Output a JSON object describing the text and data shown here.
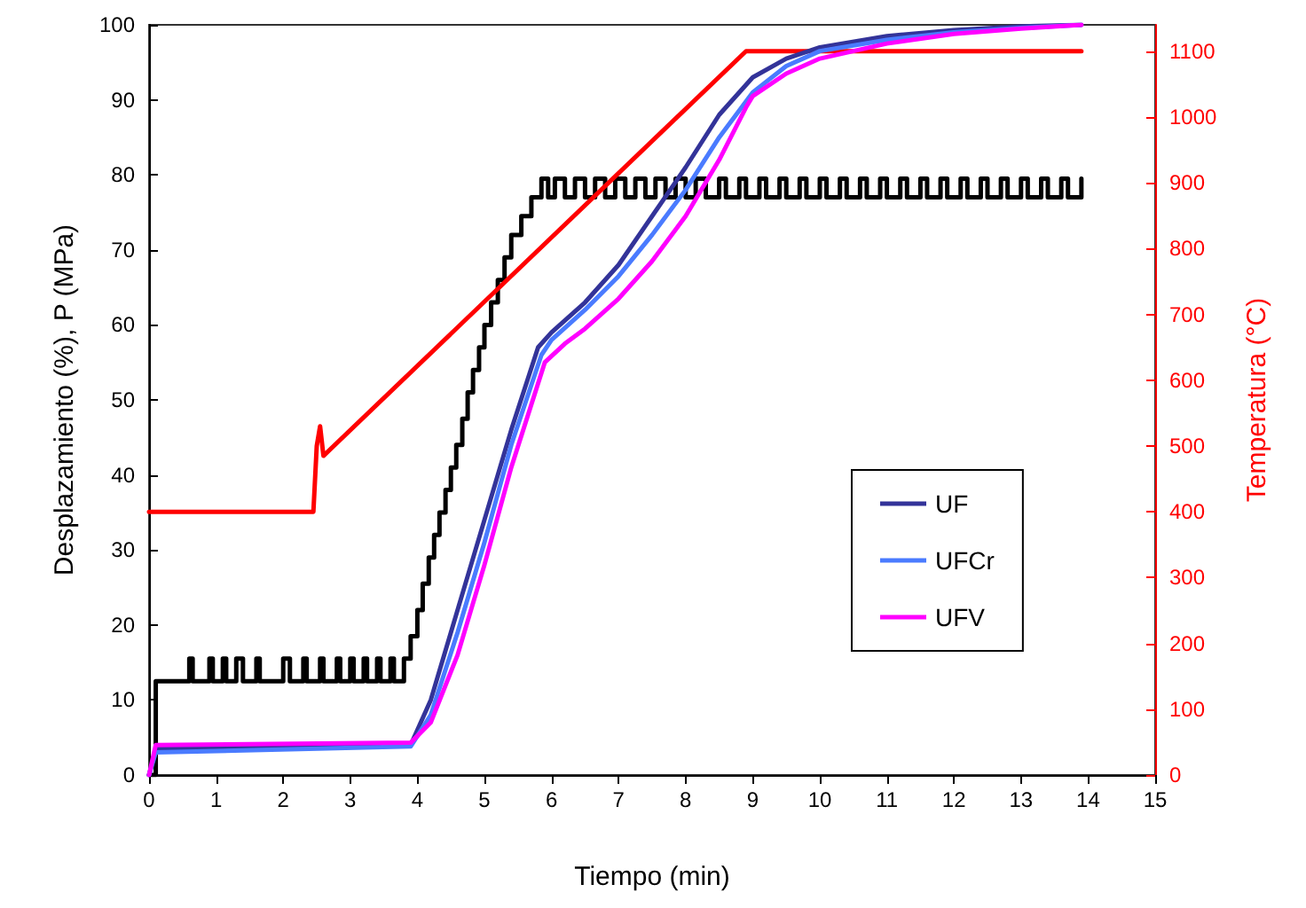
{
  "chart_data": {
    "type": "line",
    "xlabel": "Tiempo (min)",
    "ylabel": "Desplazamiento (%), P (MPa)",
    "y2label": "Temperatura (°C)",
    "xlim": [
      0,
      15
    ],
    "xticks": [
      0,
      1,
      2,
      3,
      4,
      5,
      6,
      7,
      8,
      9,
      10,
      11,
      12,
      13,
      14,
      15
    ],
    "ylim": [
      0,
      100
    ],
    "yticks": [
      0,
      10,
      20,
      30,
      40,
      50,
      60,
      70,
      80,
      90,
      100
    ],
    "y2lim": [
      0,
      1140
    ],
    "y2ticks": [
      0,
      100,
      200,
      300,
      400,
      500,
      600,
      700,
      800,
      900,
      1000,
      1100
    ],
    "grid": false,
    "legend": "right",
    "marker": "none",
    "line_style": "solid",
    "series": [
      {
        "type": "step",
        "color": "#000000",
        "x": [
          0,
          0.1,
          0.6,
          0.65,
          0.9,
          0.95,
          1.1,
          1.15,
          1.3,
          1.4,
          1.6,
          1.65,
          2.0,
          2.1,
          2.3,
          2.35,
          2.55,
          2.6,
          2.8,
          2.85,
          3.0,
          3.05,
          3.2,
          3.25,
          3.4,
          3.45,
          3.6,
          3.65,
          3.8,
          3.9,
          4.0,
          4.08,
          4.17,
          4.25,
          4.33,
          4.42,
          4.5,
          4.58,
          4.67,
          4.75,
          4.83,
          4.92,
          5.0,
          5.1,
          5.2,
          5.3,
          5.4,
          5.55,
          5.7,
          5.85,
          5.95,
          6.05,
          6.2,
          6.35,
          6.5,
          6.65,
          6.8,
          6.95,
          7.1,
          7.25,
          7.4,
          7.55,
          7.7,
          7.85,
          8.0,
          8.15,
          8.3,
          8.5,
          8.6,
          8.8,
          8.9,
          9.1,
          9.2,
          9.4,
          9.5,
          9.7,
          9.8,
          10.0,
          10.1,
          10.3,
          10.4,
          10.6,
          10.7,
          10.9,
          11.0,
          11.2,
          11.3,
          11.5,
          11.6,
          11.8,
          11.9,
          12.1,
          12.2,
          12.4,
          12.5,
          12.7,
          12.8,
          13.0,
          13.1,
          13.3,
          13.4,
          13.6,
          13.7,
          13.9
        ],
        "values": [
          0,
          12.5,
          15.5,
          12.5,
          15.5,
          12.5,
          15.5,
          12.5,
          15.5,
          12.5,
          15.5,
          12.5,
          15.5,
          12.5,
          15.5,
          12.5,
          15.5,
          12.5,
          15.5,
          12.5,
          15.5,
          12.5,
          15.5,
          12.5,
          15.5,
          12.5,
          15.5,
          12.5,
          15.5,
          18.5,
          22,
          25.5,
          29,
          32,
          35,
          38,
          41,
          44,
          47.5,
          51,
          54,
          57,
          60,
          63,
          66,
          69,
          72,
          74.5,
          77,
          79.5,
          77,
          79.5,
          77,
          79.5,
          77,
          79.5,
          77,
          79.5,
          77,
          79.5,
          77,
          79.5,
          77,
          79.5,
          77,
          79.5,
          77,
          79.5,
          77,
          79.5,
          77,
          79.5,
          77,
          79.5,
          77,
          79.5,
          77,
          79.5,
          77,
          79.5,
          77,
          79.5,
          77,
          79.5,
          77,
          79.5,
          77,
          79.5,
          77,
          79.5,
          77,
          79.5,
          77,
          79.5,
          77,
          79.5,
          77,
          79.5,
          77,
          79.5,
          77,
          79.5,
          77,
          79.5
        ]
      },
      {
        "type": "line",
        "axis": "y2",
        "color": "#ff0000",
        "x": [
          0,
          2.45,
          2.5,
          2.55,
          2.6,
          8.9,
          13.9
        ],
        "values": [
          400,
          400,
          500,
          530,
          485,
          1100,
          1100
        ]
      },
      {
        "name": "UF",
        "color": "#333399",
        "x": [
          0,
          0.1,
          3.9,
          4.2,
          4.6,
          5.0,
          5.4,
          5.8,
          6.0,
          6.5,
          7.0,
          7.5,
          8.0,
          8.5,
          9.0,
          9.5,
          10,
          11,
          12,
          13,
          13.9
        ],
        "values": [
          0,
          3.5,
          4,
          10,
          22,
          34,
          46,
          57,
          59,
          63,
          68,
          74.5,
          81,
          88,
          93,
          95.5,
          97,
          98.5,
          99.3,
          99.8,
          100
        ]
      },
      {
        "name": "UFCr",
        "color": "#4a7bff",
        "x": [
          0,
          0.1,
          3.9,
          4.2,
          4.6,
          5.0,
          5.4,
          5.85,
          6.0,
          6.5,
          7.0,
          7.5,
          8.0,
          8.5,
          9.0,
          9.5,
          10,
          11,
          12,
          13,
          13.9
        ],
        "values": [
          0,
          3,
          3.8,
          8,
          19,
          31,
          44,
          56,
          58,
          62,
          66.5,
          72,
          78,
          85,
          91,
          94.5,
          96.5,
          98,
          99,
          99.6,
          100
        ]
      },
      {
        "name": "UFV",
        "color": "#ff00ff",
        "x": [
          0,
          0.1,
          3.9,
          4.2,
          4.6,
          5.0,
          5.4,
          5.9,
          6.2,
          6.5,
          7.0,
          7.5,
          8.0,
          8.5,
          8.9,
          9.0,
          9.5,
          10,
          11,
          12,
          13,
          13.9
        ],
        "values": [
          0,
          4,
          4.3,
          7,
          16,
          28,
          41,
          55,
          57.5,
          59.5,
          63.5,
          68.5,
          74.5,
          82,
          89,
          90.5,
          93.5,
          95.5,
          97.5,
          98.8,
          99.5,
          100
        ]
      }
    ]
  }
}
